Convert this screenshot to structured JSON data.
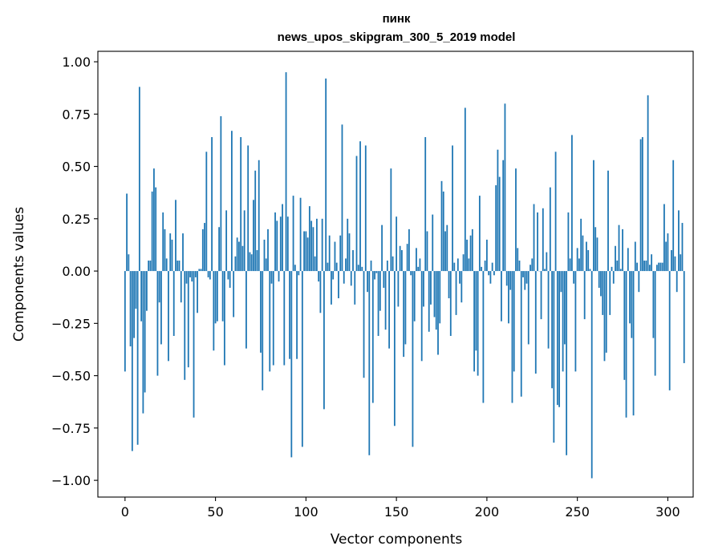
{
  "chart_data": {
    "type": "bar",
    "title_line1": "пинк",
    "title_line2": "news_upos_skipgram_300_5_2019 model",
    "xlabel": "Vector components",
    "ylabel": "Components values",
    "xlim": [
      -15,
      314
    ],
    "ylim": [
      -1.08,
      1.05
    ],
    "x_ticks": [
      0,
      50,
      100,
      150,
      200,
      250,
      300
    ],
    "x_tick_labels": [
      "0",
      "50",
      "100",
      "150",
      "200",
      "250",
      "300"
    ],
    "y_ticks": [
      -1.0,
      -0.75,
      -0.5,
      -0.25,
      0.0,
      0.25,
      0.5,
      0.75,
      1.0
    ],
    "y_tick_labels": [
      "−1.00",
      "−0.75",
      "−0.50",
      "−0.25",
      "0.00",
      "0.25",
      "0.50",
      "0.75",
      "1.00"
    ],
    "bar_color": "#1f77b4",
    "values": [
      -0.48,
      0.37,
      0.08,
      -0.36,
      -0.86,
      -0.32,
      -0.18,
      -0.83,
      0.88,
      -0.24,
      -0.68,
      -0.58,
      -0.19,
      0.05,
      0.05,
      0.38,
      0.49,
      0.4,
      -0.5,
      -0.15,
      -0.35,
      0.28,
      0.2,
      0.06,
      -0.43,
      0.18,
      0.15,
      -0.31,
      0.34,
      0.05,
      0.05,
      -0.15,
      0.18,
      -0.52,
      -0.06,
      -0.46,
      -0.03,
      -0.05,
      -0.7,
      -0.03,
      -0.2,
      0.01,
      0.01,
      0.2,
      0.23,
      0.57,
      -0.03,
      -0.04,
      0.64,
      -0.38,
      -0.25,
      -0.24,
      0.21,
      0.74,
      -0.24,
      -0.45,
      0.29,
      -0.04,
      -0.08,
      0.67,
      -0.22,
      0.07,
      0.16,
      0.14,
      0.64,
      0.12,
      0.29,
      -0.37,
      0.6,
      0.09,
      0.08,
      0.34,
      0.48,
      0.1,
      0.53,
      -0.39,
      -0.57,
      0.15,
      0.06,
      0.2,
      -0.48,
      -0.06,
      -0.45,
      0.28,
      0.24,
      -0.05,
      0.26,
      0.32,
      -0.45,
      0.95,
      0.26,
      -0.42,
      -0.89,
      0.36,
      0.03,
      -0.42,
      -0.02,
      0.35,
      -0.84,
      0.19,
      0.19,
      0.16,
      0.31,
      0.24,
      0.21,
      0.07,
      0.25,
      -0.05,
      -0.2,
      0.25,
      -0.66,
      0.92,
      0.04,
      0.17,
      -0.16,
      -0.04,
      0.14,
      0.04,
      -0.13,
      0.17,
      0.7,
      -0.06,
      0.06,
      0.25,
      0.18,
      -0.07,
      0.1,
      -0.16,
      0.55,
      0.03,
      0.62,
      0.02,
      -0.51,
      0.6,
      -0.1,
      -0.88,
      0.05,
      -0.63,
      -0.04,
      -0.01,
      -0.31,
      -0.19,
      0.22,
      -0.08,
      -0.28,
      0.05,
      -0.37,
      0.49,
      0.07,
      -0.74,
      0.26,
      -0.17,
      0.12,
      0.1,
      -0.41,
      -0.35,
      0.13,
      0.2,
      -0.02,
      -0.84,
      -0.24,
      0.11,
      0.02,
      0.06,
      -0.43,
      -0.17,
      0.64,
      0.19,
      -0.29,
      -0.16,
      0.27,
      -0.22,
      -0.28,
      -0.4,
      -0.25,
      0.43,
      0.38,
      0.19,
      0.22,
      -0.13,
      -0.31,
      0.6,
      0.04,
      -0.21,
      0.06,
      -0.06,
      -0.15,
      0.08,
      0.78,
      0.15,
      0.06,
      0.17,
      0.2,
      -0.48,
      -0.38,
      -0.5,
      0.36,
      0.02,
      -0.63,
      0.05,
      0.15,
      -0.02,
      -0.06,
      0.04,
      -0.02,
      0.41,
      0.58,
      0.45,
      -0.24,
      0.53,
      0.8,
      -0.07,
      -0.25,
      -0.09,
      -0.63,
      -0.48,
      0.49,
      0.11,
      0.05,
      -0.6,
      -0.03,
      -0.09,
      -0.06,
      -0.35,
      0.03,
      0.06,
      0.32,
      -0.49,
      0.28,
      0.0,
      -0.23,
      0.3,
      0.01,
      0.09,
      -0.37,
      0.4,
      -0.56,
      -0.82,
      0.57,
      -0.64,
      -0.65,
      -0.1,
      -0.48,
      -0.35,
      -0.88,
      0.28,
      0.06,
      0.65,
      -0.06,
      -0.48,
      0.11,
      0.06,
      0.25,
      0.17,
      -0.23,
      0.14,
      0.1,
      0.01,
      -0.99,
      0.53,
      0.21,
      0.16,
      -0.08,
      -0.12,
      -0.21,
      -0.43,
      -0.39,
      0.48,
      -0.21,
      0.02,
      -0.06,
      0.12,
      0.05,
      0.22,
      0.01,
      0.2,
      -0.52,
      -0.7,
      0.11,
      -0.25,
      -0.32,
      -0.69,
      0.14,
      0.04,
      -0.1,
      0.63,
      0.64,
      0.05,
      0.05,
      0.84,
      0.03,
      0.08,
      -0.32,
      -0.5,
      0.03,
      0.04,
      0.04,
      0.04,
      0.32,
      0.14,
      0.18,
      -0.57,
      0.1,
      0.53,
      0.07,
      -0.1,
      0.29,
      0.08,
      0.23,
      -0.44
    ]
  }
}
